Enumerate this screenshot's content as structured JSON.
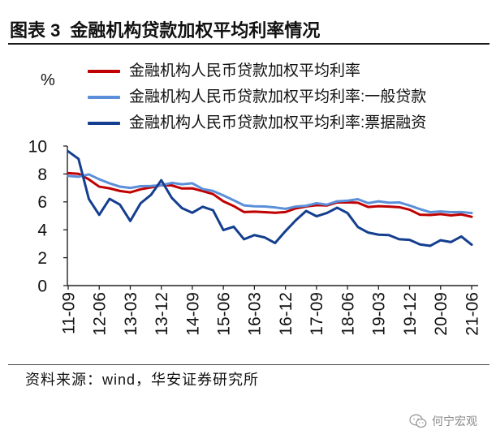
{
  "figure": {
    "label": "图表 3"
  },
  "chart_data": {
    "type": "line",
    "title": "金融机构贷款加权平均利率情况",
    "ylabel": "%",
    "ylim": [
      0,
      10
    ],
    "yticks": [
      0,
      2,
      4,
      6,
      8,
      10
    ],
    "grid": false,
    "xtick_labels": [
      "11-09",
      "12-06",
      "13-03",
      "13-12",
      "14-09",
      "15-06",
      "16-03",
      "16-12",
      "17-09",
      "18-06",
      "19-03",
      "19-12",
      "20-09",
      "21-06"
    ],
    "xtick_step": 3,
    "series": [
      {
        "name": "金融机构人民币贷款加权平均利率",
        "color": "#C00000",
        "values": [
          8.06,
          8.01,
          7.61,
          7.09,
          6.97,
          6.78,
          6.68,
          6.9,
          7.03,
          7.2,
          7.18,
          6.96,
          6.97,
          6.77,
          6.56,
          6.04,
          5.7,
          5.27,
          5.3,
          5.26,
          5.22,
          5.27,
          5.53,
          5.67,
          5.76,
          5.74,
          5.96,
          5.97,
          5.94,
          5.63,
          5.69,
          5.66,
          5.62,
          5.44,
          5.08,
          5.06,
          5.12,
          5.03,
          5.1,
          4.93
        ]
      },
      {
        "name": "金融机构人民币贷款加权平均利率:一般贷款",
        "color": "#5B8FD9",
        "values": [
          7.86,
          7.8,
          7.97,
          7.62,
          7.33,
          7.09,
          7.0,
          7.12,
          7.14,
          7.2,
          7.36,
          7.26,
          7.33,
          6.92,
          6.78,
          6.46,
          6.11,
          5.75,
          5.68,
          5.67,
          5.6,
          5.5,
          5.66,
          5.72,
          5.9,
          5.8,
          6.04,
          6.08,
          6.19,
          5.91,
          6.04,
          5.94,
          5.96,
          5.74,
          5.48,
          5.26,
          5.31,
          5.26,
          5.27,
          5.2
        ]
      },
      {
        "name": "金融机构人民币贷款加权平均利率:票据融资",
        "color": "#143E8F",
        "values": [
          9.62,
          9.08,
          6.2,
          5.07,
          6.22,
          5.8,
          4.63,
          5.9,
          6.5,
          7.55,
          6.3,
          5.55,
          5.22,
          5.65,
          5.4,
          3.98,
          4.22,
          3.32,
          3.62,
          3.45,
          3.05,
          3.9,
          4.68,
          5.35,
          4.97,
          5.2,
          5.58,
          5.2,
          4.2,
          3.8,
          3.65,
          3.62,
          3.32,
          3.28,
          2.95,
          2.85,
          3.25,
          3.12,
          3.52,
          2.93
        ]
      }
    ]
  },
  "source": {
    "text": "资料来源：wind，华安证券研究所"
  },
  "watermark": {
    "icon": "wechat-icon",
    "text": "何宁宏观"
  }
}
